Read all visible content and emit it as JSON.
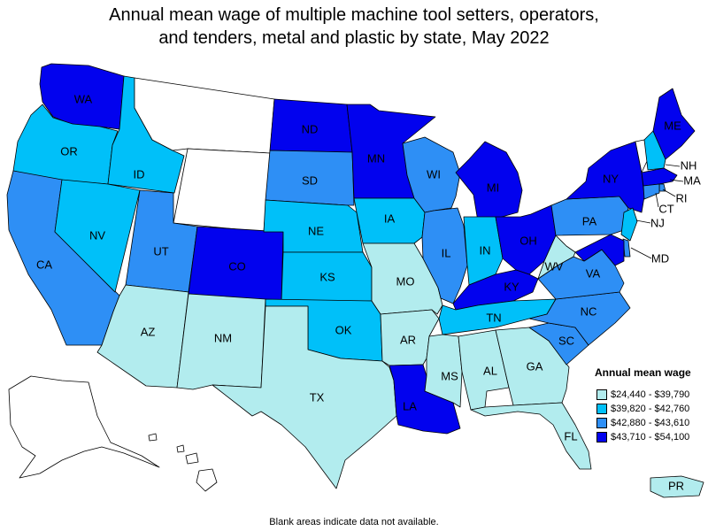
{
  "title_line1": "Annual mean wage of multiple machine tool setters, operators,",
  "title_line2": "and tenders, metal and plastic by state, May 2022",
  "legend": {
    "title": "Annual mean wage",
    "items": [
      {
        "label": "$24,440 - $39,790",
        "color": "#b2ecee"
      },
      {
        "label": "$39,820 - $42,760",
        "color": "#00c0f9"
      },
      {
        "label": "$42,880 - $43,610",
        "color": "#2e8ff5"
      },
      {
        "label": "$43,710 - $54,100",
        "color": "#0202ee"
      }
    ]
  },
  "no_data_color": "#ffffff",
  "states": {
    "WA": {
      "label": "WA",
      "class": 4
    },
    "OR": {
      "label": "OR",
      "class": 2
    },
    "CA": {
      "label": "CA",
      "class": 3
    },
    "ID": {
      "label": "ID",
      "class": 2
    },
    "NV": {
      "label": "NV",
      "class": 2
    },
    "MT": {
      "label": "",
      "class": 0
    },
    "WY": {
      "label": "",
      "class": 0
    },
    "UT": {
      "label": "UT",
      "class": 3
    },
    "AZ": {
      "label": "AZ",
      "class": 1
    },
    "CO": {
      "label": "CO",
      "class": 4
    },
    "NM": {
      "label": "NM",
      "class": 1
    },
    "ND": {
      "label": "ND",
      "class": 4
    },
    "SD": {
      "label": "SD",
      "class": 3
    },
    "NE": {
      "label": "NE",
      "class": 2
    },
    "KS": {
      "label": "KS",
      "class": 2
    },
    "OK": {
      "label": "OK",
      "class": 2
    },
    "TX": {
      "label": "TX",
      "class": 1
    },
    "MN": {
      "label": "MN",
      "class": 4
    },
    "IA": {
      "label": "IA",
      "class": 2
    },
    "MO": {
      "label": "MO",
      "class": 1
    },
    "AR": {
      "label": "AR",
      "class": 1
    },
    "LA": {
      "label": "LA",
      "class": 4
    },
    "WI": {
      "label": "WI",
      "class": 3
    },
    "IL": {
      "label": "IL",
      "class": 3
    },
    "MI": {
      "label": "MI",
      "class": 4
    },
    "IN": {
      "label": "IN",
      "class": 2
    },
    "OH": {
      "label": "OH",
      "class": 4
    },
    "KY": {
      "label": "KY",
      "class": 4
    },
    "TN": {
      "label": "TN",
      "class": 2
    },
    "MS": {
      "label": "MS",
      "class": 1
    },
    "AL": {
      "label": "AL",
      "class": 1
    },
    "GA": {
      "label": "GA",
      "class": 1
    },
    "FL": {
      "label": "FL",
      "class": 1
    },
    "SC": {
      "label": "SC",
      "class": 3
    },
    "NC": {
      "label": "NC",
      "class": 3
    },
    "VA": {
      "label": "VA",
      "class": 3
    },
    "WV": {
      "label": "WV",
      "class": 1
    },
    "PA": {
      "label": "PA",
      "class": 3
    },
    "NY": {
      "label": "NY",
      "class": 4
    },
    "VT": {
      "label": "",
      "class": 0
    },
    "NH": {
      "label": "NH",
      "class": 2
    },
    "ME": {
      "label": "ME",
      "class": 4
    },
    "MA": {
      "label": "MA",
      "class": 4
    },
    "RI": {
      "label": "RI",
      "class": 3
    },
    "CT": {
      "label": "CT",
      "class": 3
    },
    "NJ": {
      "label": "NJ",
      "class": 2
    },
    "DE": {
      "label": "",
      "class": 3
    },
    "MD": {
      "label": "MD",
      "class": 4
    },
    "AK": {
      "label": "",
      "class": 0
    },
    "HI": {
      "label": "",
      "class": 0
    },
    "PR": {
      "label": "PR",
      "class": 1
    }
  },
  "footnote": "Blank areas indicate data not available."
}
